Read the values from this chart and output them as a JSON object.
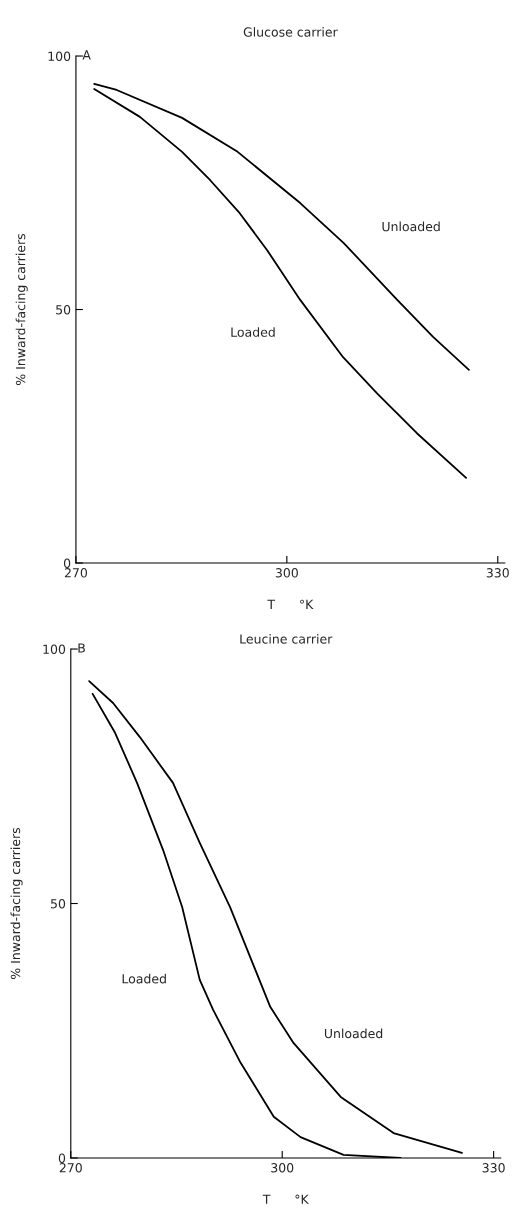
{
  "chart_data": [
    {
      "type": "line",
      "title": "Glucose carrier",
      "xlabel": "T      °K",
      "ylabel": "% Inward-facing carriers",
      "xlim": [
        270,
        331
      ],
      "ylim": [
        0,
        100
      ],
      "xticks": [
        270,
        300,
        330
      ],
      "yticks": [
        0,
        50,
        100
      ],
      "grid": false,
      "legend": false,
      "series": [
        {
          "name": "Unloaded",
          "color": "#000000",
          "x": [
            272.6,
            275.8,
            285.1,
            293.0,
            301.9,
            308.1,
            315.7,
            320.8,
            325.9
          ],
          "values": [
            94.5,
            93.3,
            87.8,
            81.1,
            71.0,
            63.1,
            51.9,
            44.6,
            38.1
          ]
        },
        {
          "name": "Loaded",
          "color": "#000000",
          "x": [
            272.6,
            279.1,
            285.1,
            289.1,
            293.3,
            297.2,
            301.9,
            308.0,
            312.8,
            318.5,
            325.5
          ],
          "values": [
            93.5,
            88.0,
            81.1,
            75.5,
            69.0,
            61.7,
            51.9,
            40.6,
            33.5,
            25.6,
            16.8
          ]
        }
      ],
      "annotations": [
        "A"
      ]
    },
    {
      "type": "line",
      "title": "Leucine carrier",
      "xlabel": "T      °K",
      "ylabel": "% Inward-facing carriers",
      "xlim": [
        270,
        331
      ],
      "ylim": [
        0,
        100
      ],
      "xticks": [
        270,
        300,
        330
      ],
      "yticks": [
        0,
        50,
        100
      ],
      "grid": false,
      "legend": false,
      "series": [
        {
          "name": "Unloaded",
          "color": "#000000",
          "x": [
            272.6,
            276.0,
            279.8,
            284.5,
            288.3,
            292.6,
            298.3,
            301.6,
            308.3,
            315.8,
            325.5
          ],
          "values": [
            93.7,
            89.4,
            82.7,
            73.7,
            61.9,
            49.3,
            29.7,
            22.6,
            12.0,
            4.9,
            1.0
          ]
        },
        {
          "name": "Loaded",
          "color": "#000000",
          "x": [
            273.1,
            276.3,
            279.4,
            283.1,
            285.8,
            288.3,
            290.2,
            294.1,
            298.8,
            302.6,
            308.7,
            316.8
          ],
          "values": [
            91.2,
            83.5,
            73.7,
            60.5,
            49.3,
            35.0,
            29.1,
            18.7,
            8.1,
            4.1,
            0.6,
            0
          ]
        }
      ],
      "annotations": [
        "B"
      ]
    }
  ]
}
